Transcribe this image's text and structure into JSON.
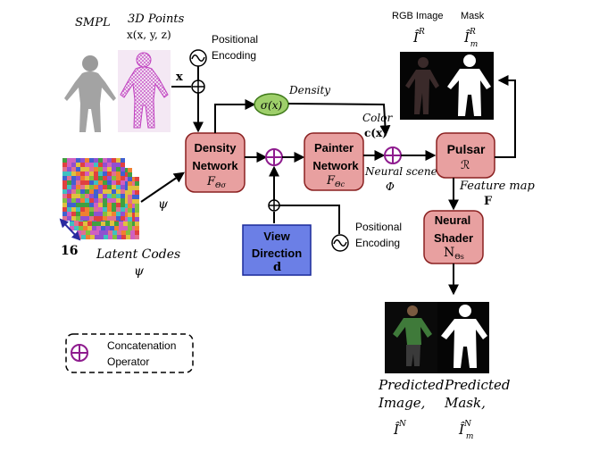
{
  "labels": {
    "smpl": "SMPL",
    "points3d": "3D Points",
    "points3d_formula": "x(x, y, z)",
    "x_symbol": "x",
    "pos_enc_top": [
      "Positional",
      "Encoding"
    ],
    "density_edge": "Density",
    "sigma": "σ(x)",
    "color_label": "Color",
    "color_formula": "c(x)",
    "neural_scene": "Neural scene",
    "phi": "Φ",
    "feature_map": "Feature map",
    "feature_symbol": "F",
    "rgb_image": "RGB Image",
    "mask": "Mask",
    "rgb_symbol": "Î",
    "rgb_sup": "R",
    "mask_symbol": "Î",
    "mask_sub": "m",
    "mask_sup": "R",
    "psi": "ψ",
    "sixteen": "16",
    "latent_codes": "Latent Codes",
    "latent_psi": "ψ",
    "pos_enc_bottom": [
      "Positional",
      "Encoding"
    ],
    "legend_label": [
      "Concatenation",
      "Operator"
    ],
    "pred_image": [
      "Predicted",
      "Image,"
    ],
    "pred_image_symbol": "Î",
    "pred_image_sup": "N",
    "pred_mask": [
      "Predicted",
      "Mask,"
    ],
    "pred_mask_symbol": "Î",
    "pred_mask_sub": "m",
    "pred_mask_sup": "N"
  },
  "nodes": {
    "density_network": {
      "title": [
        "Density",
        "Network"
      ],
      "sym": "F",
      "sub": "Θσ"
    },
    "painter_network": {
      "title": [
        "Painter",
        "Network"
      ],
      "sym": "F",
      "sub": "Θc"
    },
    "pulsar": {
      "title": [
        "Pulsar"
      ],
      "sym": "ℛ"
    },
    "neural_shader": {
      "title": [
        "Neural",
        "Shader"
      ],
      "sym": "N",
      "sub": "Θs"
    },
    "view_direction": {
      "title": [
        "View",
        "Direction"
      ],
      "sym": "d"
    }
  },
  "colors": {
    "node_fill": "#e8a0a0",
    "node_stroke": "#8a2020",
    "view_fill": "#6b7fe6",
    "view_stroke": "#1a2a9a",
    "sigma_fill": "#9ecf6a",
    "sigma_stroke": "#3f7a1a",
    "concat": "#8e1b8e",
    "arrow": "#000000",
    "mesh": "#c040c0"
  }
}
